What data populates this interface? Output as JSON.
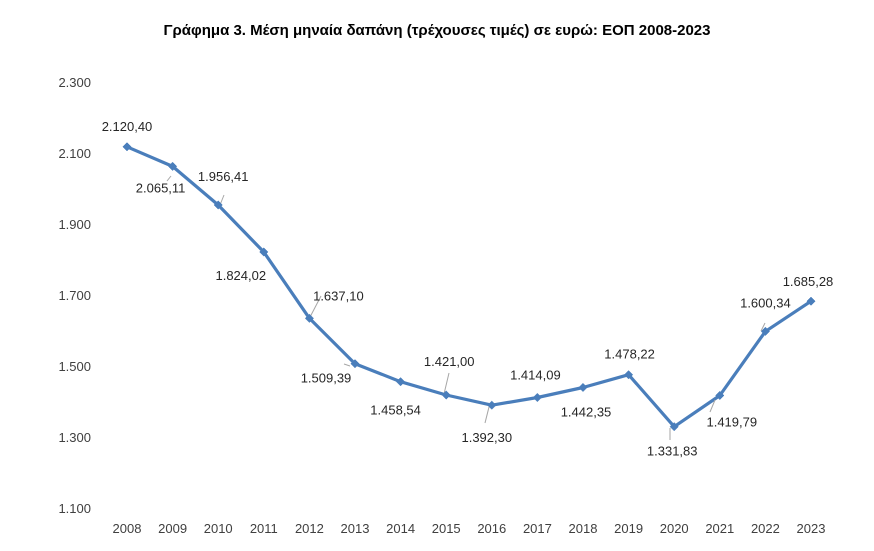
{
  "chart_data": {
    "type": "line",
    "title": "Γράφημα 3. Μέση μηναία δαπάνη (τρέχουσες τιμές) σε ευρώ: ΕΟΠ 2008-2023",
    "xlabel": "",
    "ylabel": "",
    "categories": [
      "2008",
      "2009",
      "2010",
      "2011",
      "2012",
      "2013",
      "2014",
      "2015",
      "2016",
      "2017",
      "2018",
      "2019",
      "2020",
      "2021",
      "2022",
      "2023"
    ],
    "series": [
      {
        "values": [
          2120.4,
          2065.11,
          1956.41,
          1824.02,
          1637.1,
          1509.39,
          1458.54,
          1421.0,
          1392.3,
          1414.09,
          1442.35,
          1478.22,
          1331.83,
          1419.79,
          1600.34,
          1685.28
        ],
        "labels": [
          "2.120,40",
          "2.065,11",
          "1.956,41",
          "1.824,02",
          "1.637,10",
          "1.509,39",
          "1.458,54",
          "1.421,00",
          "1.392,30",
          "1.414,09",
          "1.442,35",
          "1.478,22",
          "1.331,83",
          "1.419,79",
          "1.600,34",
          "1.685,28"
        ]
      }
    ],
    "yticks": [
      1100,
      1300,
      1500,
      1700,
      1900,
      2100,
      2300
    ],
    "ytick_labels": [
      "1.100",
      "1.300",
      "1.500",
      "1.700",
      "1.900",
      "2.100",
      "2.300"
    ],
    "ylim": [
      1100,
      2300
    ],
    "grid": false,
    "line_color": "#4a7ebb"
  }
}
